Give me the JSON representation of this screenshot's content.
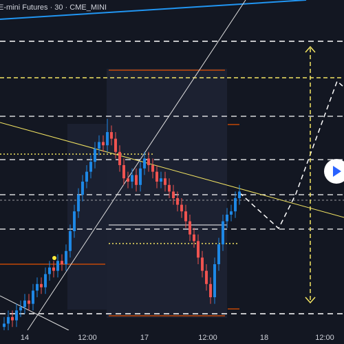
{
  "chart_data": {
    "type": "candlestick",
    "title": "E-mini Futures · 30 · CME_MINI",
    "xtick_labels": [
      "14",
      "12:00",
      "17",
      "12:00",
      "18",
      "12:00"
    ],
    "up_color": "#1e88e5",
    "down_color": "#ef5350",
    "open": [
      1,
      2,
      4,
      3,
      6,
      7,
      9,
      8,
      12,
      14,
      13,
      17,
      19,
      18,
      21,
      20,
      24,
      30,
      36,
      41,
      45,
      48,
      51,
      55,
      57,
      56,
      60,
      58,
      54,
      50,
      46,
      45,
      47,
      44,
      49,
      52,
      50,
      48,
      45,
      46,
      44,
      42,
      40,
      38,
      36,
      33,
      29,
      27,
      22,
      18,
      14,
      10,
      20,
      26,
      33,
      35,
      36,
      40
    ],
    "high": [
      4,
      6,
      6,
      8,
      9,
      11,
      11,
      14,
      16,
      16,
      19,
      21,
      21,
      23,
      23,
      26,
      32,
      38,
      43,
      47,
      50,
      53,
      57,
      59,
      59,
      64,
      62,
      60,
      56,
      52,
      48,
      49,
      49,
      51,
      54,
      54,
      52,
      50,
      48,
      48,
      46,
      44,
      42,
      40,
      38,
      35,
      31,
      29,
      24,
      20,
      16,
      22,
      28,
      35,
      37,
      38,
      42,
      44
    ],
    "low": [
      -1,
      0,
      1,
      1,
      4,
      5,
      6,
      6,
      10,
      11,
      11,
      15,
      16,
      16,
      18,
      18,
      22,
      28,
      34,
      39,
      43,
      46,
      49,
      53,
      54,
      54,
      56,
      52,
      48,
      44,
      43,
      43,
      42,
      42,
      47,
      48,
      46,
      43,
      43,
      42,
      40,
      38,
      36,
      34,
      31,
      27,
      25,
      20,
      16,
      12,
      8,
      8,
      18,
      24,
      31,
      33,
      34,
      38
    ],
    "close": [
      2,
      4,
      3,
      6,
      7,
      9,
      8,
      12,
      14,
      13,
      17,
      19,
      18,
      21,
      20,
      24,
      30,
      36,
      41,
      45,
      48,
      51,
      55,
      57,
      56,
      60,
      58,
      54,
      50,
      46,
      45,
      47,
      44,
      49,
      52,
      50,
      48,
      45,
      46,
      44,
      42,
      40,
      38,
      36,
      33,
      29,
      27,
      22,
      18,
      14,
      10,
      20,
      26,
      33,
      35,
      36,
      40,
      42
    ]
  }
}
